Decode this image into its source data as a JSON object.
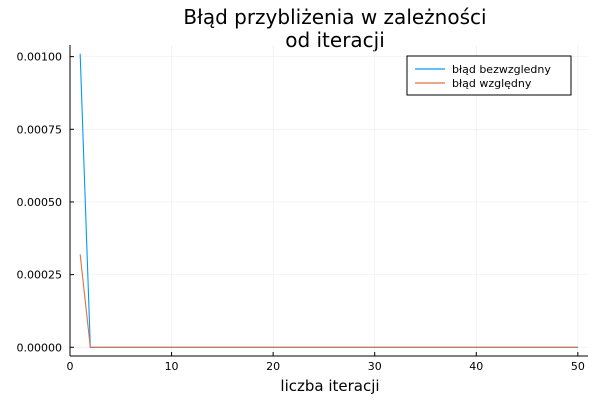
{
  "chart_data": {
    "type": "line",
    "title_line1": "Błąd przybliżenia w zależności",
    "title_line2": "od iteracji",
    "xlabel": "liczba iteracji",
    "ylabel": "",
    "xlim": [
      0,
      51
    ],
    "ylim": [
      -3e-05,
      0.00104
    ],
    "xticks": [
      0,
      10,
      20,
      30,
      40,
      50
    ],
    "xtick_labels": [
      "0",
      "10",
      "20",
      "30",
      "40",
      "50"
    ],
    "yticks": [
      0,
      0.00025,
      0.0005,
      0.00075,
      0.001
    ],
    "ytick_labels": [
      "0.00000",
      "0.00025",
      "0.00050",
      "0.00075",
      "0.00100"
    ],
    "grid": true,
    "legend_position": "top-right",
    "series": [
      {
        "name": "błąd bezwzgledny",
        "color": "#009AFA",
        "x": [
          1,
          2,
          3,
          50
        ],
        "y": [
          0.00101,
          0.0,
          0.0,
          0.0
        ]
      },
      {
        "name": "błąd względny",
        "color": "#E26F46",
        "x": [
          1,
          2,
          3,
          50
        ],
        "y": [
          0.00032,
          0.0,
          0.0,
          0.0
        ]
      }
    ]
  }
}
